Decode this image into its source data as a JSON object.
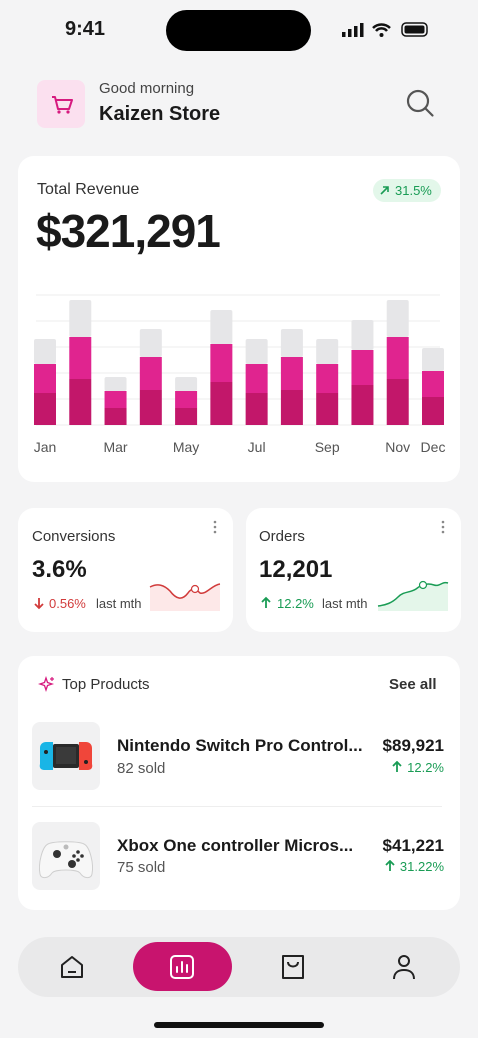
{
  "status_bar": {
    "time": "9:41"
  },
  "header": {
    "greeting": "Good morning",
    "store": "Kaizen Store"
  },
  "revenue": {
    "label": "Total Revenue",
    "change": "31.5%",
    "value": "$321,291",
    "chart": {
      "type": "bar",
      "stacked": true,
      "categories": [
        "Jan",
        null,
        "Mar",
        null,
        "May",
        null,
        "Jul",
        null,
        "Sep",
        null,
        "Nov",
        "Dec"
      ],
      "ylim": [
        0,
        130
      ],
      "series": [
        {
          "color": "#c2176a",
          "values": [
            32,
            46,
            17,
            35,
            17,
            43,
            32,
            35,
            32,
            40,
            46,
            28
          ]
        },
        {
          "color": "#e0248f",
          "values": [
            29,
            42,
            17,
            33,
            17,
            38,
            29,
            33,
            29,
            35,
            42,
            26
          ]
        },
        {
          "color": "#e6e6e8",
          "values": [
            25,
            37,
            14,
            28,
            14,
            34,
            25,
            28,
            25,
            30,
            37,
            23
          ]
        }
      ]
    }
  },
  "stats": [
    {
      "title": "Conversions",
      "value": "3.6%",
      "change": "0.56%",
      "period": "last mth"
    },
    {
      "title": "Orders",
      "value": "12,201",
      "change": "12.2%",
      "period": "last mth"
    }
  ],
  "top_products": {
    "title": "Top Products",
    "see_all": "See all",
    "items": [
      {
        "name": "Nintendo Switch Pro Control...",
        "sold": "82 sold",
        "revenue": "$89,921",
        "change": "12.2%"
      },
      {
        "name": "Xbox One controller Micros...",
        "sold": "75 sold",
        "revenue": "$41,221",
        "change": "31.22%"
      }
    ]
  }
}
